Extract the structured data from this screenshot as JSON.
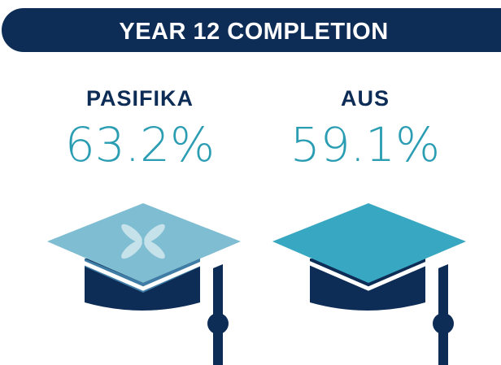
{
  "header": {
    "title": "YEAR 12 COMPLETION"
  },
  "stats": [
    {
      "label": "PASIFIKA",
      "value": "63.2%"
    },
    {
      "label": "AUS",
      "value": "59.1%"
    }
  ]
}
